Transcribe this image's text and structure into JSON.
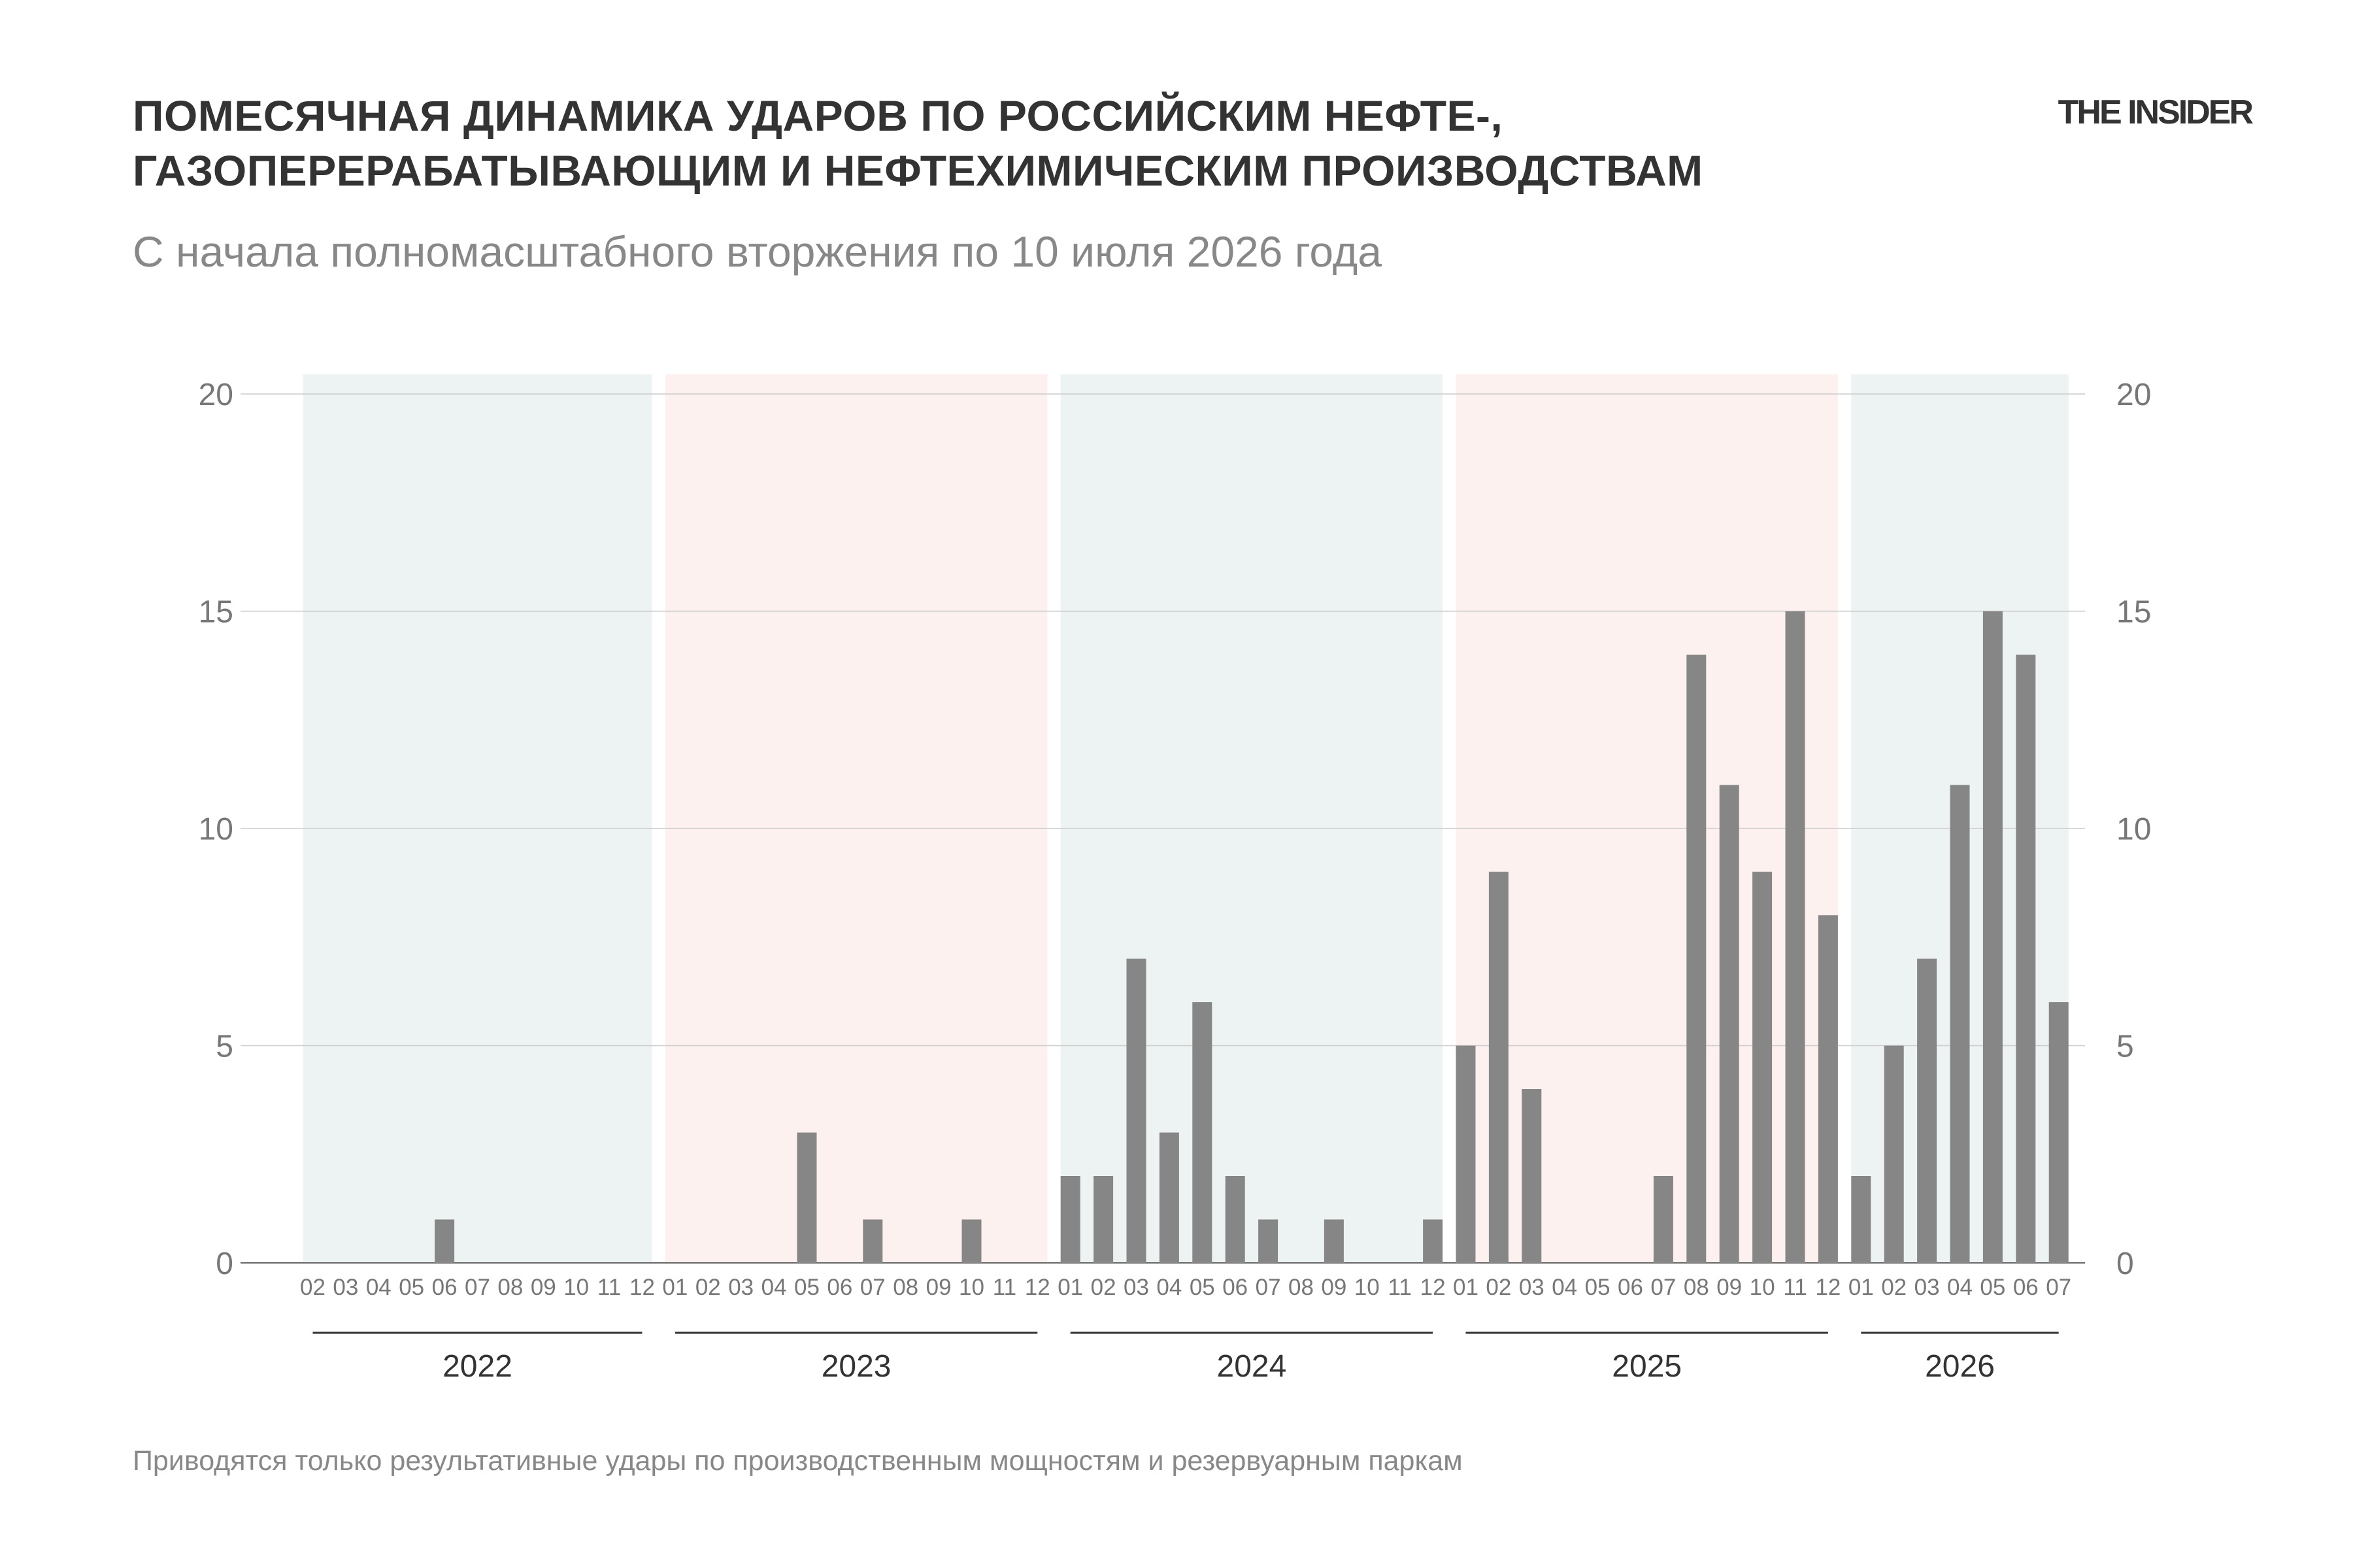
{
  "header": {
    "title_line1": "ПОМЕСЯЧНАЯ ДИНАМИКА УДАРОВ ПО РОССИЙСКИМ НЕФТЕ-,",
    "title_line2": "ГАЗОПЕРЕРАБАТЫВАЮЩИМ И НЕФТЕХИМИЧЕСКИМ ПРОИЗВОДСТВАМ",
    "subtitle": "С начала полномасштабного вторжения по 10 июля 2026 года",
    "logo": "THE INSIDER"
  },
  "footer": {
    "note": "Приводятся только результативные удары по производственным мощностям и резервуарным паркам"
  },
  "colors": {
    "bar": "#868686",
    "band_green": "#edf3f2",
    "band_red": "#fdf1ef",
    "grid": "#cccccc",
    "axis_text": "#777777",
    "year_text": "#333333"
  },
  "chart_data": {
    "type": "bar",
    "ylim": [
      0,
      20
    ],
    "yticks": [
      "0",
      "5",
      "10",
      "15",
      "20"
    ],
    "grid": true,
    "years": [
      {
        "label": "2022",
        "months": [
          "02",
          "03",
          "04",
          "05",
          "06",
          "07",
          "08",
          "09",
          "10",
          "11",
          "12"
        ],
        "values": [
          0,
          0,
          0,
          0,
          1,
          0,
          0,
          0,
          0,
          0,
          0
        ],
        "band": "green"
      },
      {
        "label": "2023",
        "months": [
          "01",
          "02",
          "03",
          "04",
          "05",
          "06",
          "07",
          "08",
          "09",
          "10",
          "11",
          "12"
        ],
        "values": [
          0,
          0,
          0,
          0,
          3,
          0,
          1,
          0,
          0,
          1,
          0,
          0
        ],
        "band": "red"
      },
      {
        "label": "2024",
        "months": [
          "01",
          "02",
          "03",
          "04",
          "05",
          "06",
          "07",
          "08",
          "09",
          "10",
          "11",
          "12"
        ],
        "values": [
          2,
          2,
          7,
          3,
          6,
          2,
          1,
          0,
          1,
          0,
          0,
          1
        ],
        "band": "green"
      },
      {
        "label": "2025",
        "months": [
          "01",
          "02",
          "03",
          "04",
          "05",
          "06",
          "07",
          "08",
          "09",
          "10",
          "11",
          "12"
        ],
        "values": [
          5,
          9,
          4,
          0,
          0,
          0,
          2,
          14,
          11,
          9,
          15,
          8
        ],
        "band": "red"
      },
      {
        "label": "2026",
        "months": [
          "01",
          "02",
          "03",
          "04",
          "05",
          "06",
          "07"
        ],
        "values": [
          2,
          5,
          7,
          11,
          15,
          14,
          6
        ],
        "band": "green"
      }
    ]
  }
}
